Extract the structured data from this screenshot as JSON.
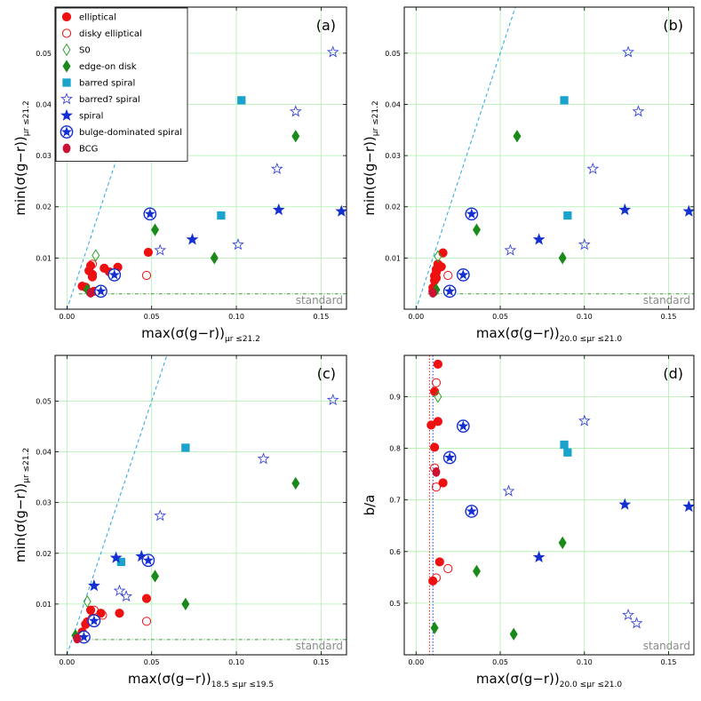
{
  "figure": {
    "name": "galaxy color-gradient scatter panels"
  },
  "styles": {
    "elliptical": {
      "label": "elliptical",
      "marker": "circle",
      "fill": "#ee1111",
      "stroke": "#ee1111"
    },
    "disky": {
      "label": "disky elliptical",
      "marker": "circle",
      "fill": "none",
      "stroke": "#ee1111"
    },
    "s0": {
      "label": "S0",
      "marker": "diamond",
      "fill": "none",
      "stroke": "#2ca02c"
    },
    "edgeon": {
      "label": "edge-on disk",
      "marker": "diamond",
      "fill": "#1a8a1a",
      "stroke": "#1a8a1a"
    },
    "barred": {
      "label": "barred spiral",
      "marker": "square",
      "fill": "#1aa3cc",
      "stroke": "#1aa3cc"
    },
    "barredq": {
      "label": "barred? spiral",
      "marker": "star",
      "fill": "none",
      "stroke": "#3a46d6"
    },
    "spiral": {
      "label": "spiral",
      "marker": "star",
      "fill": "#1530d0",
      "stroke": "#1530d0"
    },
    "bulge": {
      "label": "bulge-dominated spiral",
      "marker": "circstar",
      "fill": "#1530d0",
      "stroke": "#1530d0"
    },
    "bcg": {
      "label": "BCG",
      "marker": "bcg",
      "fill": "#cc1133",
      "stroke": "#cc1133"
    }
  },
  "legend_order": [
    "elliptical",
    "disky",
    "s0",
    "edgeon",
    "barred",
    "barredq",
    "spiral",
    "bulge",
    "bcg"
  ],
  "chart_data": [
    {
      "type": "scatter",
      "panel": "(a)",
      "xlabel": "max(σ(g−r))μr ≤21.2",
      "ylabel": "min(σ(g−r))μr ≤21.2",
      "xlim": [
        -0.007,
        0.165
      ],
      "ylim": [
        0.0,
        0.059
      ],
      "xticks": [
        0.0,
        0.05,
        0.1,
        0.15
      ],
      "xtick_labels": [
        "0.00",
        "0.05",
        "0.10",
        "0.15"
      ],
      "yticks": [
        0.01,
        0.02,
        0.03,
        0.04,
        0.05
      ],
      "ytick_labels": [
        "0.01",
        "0.02",
        "0.03",
        "0.04",
        "0.05"
      ],
      "grid": true,
      "legend": "top-left",
      "reference_lines": {
        "identity_slope": 1,
        "standard_level": 0.003,
        "standard_label": "standard"
      },
      "series": [
        {
          "style": "elliptical",
          "points": [
            [
              0.009,
              0.0045
            ],
            [
              0.011,
              0.0043
            ],
            [
              0.013,
              0.0075
            ],
            [
              0.014,
              0.0085
            ],
            [
              0.015,
              0.0068
            ],
            [
              0.015,
              0.0063
            ],
            [
              0.016,
              0.0035
            ],
            [
              0.02,
              0.0035
            ],
            [
              0.022,
              0.008
            ],
            [
              0.025,
              0.0073
            ],
            [
              0.03,
              0.0082
            ],
            [
              0.048,
              0.0111
            ]
          ]
        },
        {
          "style": "disky",
          "points": [
            [
              0.047,
              0.0066
            ],
            [
              0.015,
              0.0088
            ]
          ]
        },
        {
          "style": "s0",
          "points": [
            [
              0.017,
              0.0105
            ]
          ]
        },
        {
          "style": "edgeon",
          "points": [
            [
              0.012,
              0.0038
            ],
            [
              0.052,
              0.0155
            ],
            [
              0.087,
              0.01
            ],
            [
              0.135,
              0.0338
            ]
          ]
        },
        {
          "style": "barred",
          "points": [
            [
              0.103,
              0.0408
            ],
            [
              0.091,
              0.0183
            ]
          ]
        },
        {
          "style": "barredq",
          "points": [
            [
              0.055,
              0.0115
            ],
            [
              0.101,
              0.0126
            ],
            [
              0.124,
              0.0274
            ],
            [
              0.135,
              0.0386
            ],
            [
              0.157,
              0.0502
            ]
          ]
        },
        {
          "style": "spiral",
          "points": [
            [
              0.074,
              0.0136
            ],
            [
              0.125,
              0.0194
            ],
            [
              0.162,
              0.0191
            ]
          ]
        },
        {
          "style": "bulge",
          "points": [
            [
              0.02,
              0.0035
            ],
            [
              0.028,
              0.0067
            ],
            [
              0.049,
              0.0186
            ]
          ]
        },
        {
          "style": "bcg",
          "points": [
            [
              0.014,
              0.0032
            ]
          ]
        }
      ]
    },
    {
      "type": "scatter",
      "panel": "(b)",
      "xlabel": "max(σ(g−r))20.0 ≤μr ≤21.0",
      "ylabel": "min(σ(g−r))μr ≤21.2",
      "xlim": [
        -0.007,
        0.165
      ],
      "ylim": [
        0.0,
        0.059
      ],
      "xticks": [
        0.0,
        0.05,
        0.1,
        0.15
      ],
      "xtick_labels": [
        "0.00",
        "0.05",
        "0.10",
        "0.15"
      ],
      "yticks": [
        0.01,
        0.02,
        0.03,
        0.04,
        0.05
      ],
      "ytick_labels": [
        "0.01",
        "0.02",
        "0.03",
        "0.04",
        "0.05"
      ],
      "grid": true,
      "reference_lines": {
        "identity_slope": 1,
        "standard_level": 0.003,
        "standard_label": "standard"
      },
      "series": [
        {
          "style": "elliptical",
          "points": [
            [
              0.01,
              0.0042
            ],
            [
              0.011,
              0.0065
            ],
            [
              0.012,
              0.0078
            ],
            [
              0.013,
              0.0088
            ],
            [
              0.012,
              0.0072
            ],
            [
              0.014,
              0.0082
            ],
            [
              0.016,
              0.011
            ],
            [
              0.015,
              0.0083
            ],
            [
              0.011,
              0.0056
            ],
            [
              0.012,
              0.0061
            ],
            [
              0.01,
              0.0035
            ]
          ]
        },
        {
          "style": "disky",
          "points": [
            [
              0.019,
              0.0066
            ]
          ]
        },
        {
          "style": "s0",
          "points": [
            [
              0.013,
              0.0103
            ]
          ]
        },
        {
          "style": "edgeon",
          "points": [
            [
              0.012,
              0.0038
            ],
            [
              0.036,
              0.0155
            ],
            [
              0.087,
              0.01
            ],
            [
              0.06,
              0.0338
            ]
          ]
        },
        {
          "style": "barred",
          "points": [
            [
              0.088,
              0.0408
            ],
            [
              0.09,
              0.0183
            ]
          ]
        },
        {
          "style": "barredq",
          "points": [
            [
              0.056,
              0.0115
            ],
            [
              0.1,
              0.0126
            ],
            [
              0.105,
              0.0274
            ],
            [
              0.132,
              0.0386
            ],
            [
              0.126,
              0.0502
            ]
          ]
        },
        {
          "style": "spiral",
          "points": [
            [
              0.073,
              0.0136
            ],
            [
              0.124,
              0.0194
            ],
            [
              0.162,
              0.0191
            ]
          ]
        },
        {
          "style": "bulge",
          "points": [
            [
              0.02,
              0.0035
            ],
            [
              0.028,
              0.0067
            ],
            [
              0.033,
              0.0186
            ]
          ]
        },
        {
          "style": "bcg",
          "points": [
            [
              0.01,
              0.0032
            ]
          ]
        }
      ]
    },
    {
      "type": "scatter",
      "panel": "(c)",
      "xlabel": "max(σ(g−r))18.5 ≤μr ≤19.5",
      "ylabel": "min(σ(g−r))μr ≤21.2",
      "xlim": [
        -0.007,
        0.165
      ],
      "ylim": [
        0.0,
        0.059
      ],
      "xticks": [
        0.0,
        0.05,
        0.1,
        0.15
      ],
      "xtick_labels": [
        "0.00",
        "0.05",
        "0.10",
        "0.15"
      ],
      "yticks": [
        0.01,
        0.02,
        0.03,
        0.04,
        0.05
      ],
      "ytick_labels": [
        "0.01",
        "0.02",
        "0.03",
        "0.04",
        "0.05"
      ],
      "grid": true,
      "reference_lines": {
        "identity_slope": 1,
        "standard_level": 0.003,
        "standard_label": "standard"
      },
      "series": [
        {
          "style": "elliptical",
          "points": [
            [
              0.006,
              0.0035
            ],
            [
              0.009,
              0.0045
            ],
            [
              0.011,
              0.006
            ],
            [
              0.012,
              0.0065
            ],
            [
              0.014,
              0.0088
            ],
            [
              0.015,
              0.0072
            ],
            [
              0.016,
              0.0068
            ],
            [
              0.02,
              0.0082
            ],
            [
              0.031,
              0.0082
            ],
            [
              0.047,
              0.0111
            ]
          ]
        },
        {
          "style": "disky",
          "points": [
            [
              0.047,
              0.0066
            ],
            [
              0.016,
              0.0088
            ],
            [
              0.021,
              0.0078
            ]
          ]
        },
        {
          "style": "s0",
          "points": [
            [
              0.012,
              0.0105
            ]
          ]
        },
        {
          "style": "edgeon",
          "points": [
            [
              0.005,
              0.0038
            ],
            [
              0.052,
              0.0155
            ],
            [
              0.07,
              0.01
            ],
            [
              0.135,
              0.0338
            ]
          ]
        },
        {
          "style": "barred",
          "points": [
            [
              0.07,
              0.0408
            ],
            [
              0.032,
              0.0183
            ]
          ]
        },
        {
          "style": "barredq",
          "points": [
            [
              0.031,
              0.0126
            ],
            [
              0.035,
              0.0115
            ],
            [
              0.055,
              0.0274
            ],
            [
              0.116,
              0.0386
            ],
            [
              0.157,
              0.0502
            ]
          ]
        },
        {
          "style": "spiral",
          "points": [
            [
              0.016,
              0.0136
            ],
            [
              0.029,
              0.0191
            ],
            [
              0.044,
              0.0194
            ]
          ]
        },
        {
          "style": "bulge",
          "points": [
            [
              0.01,
              0.0035
            ],
            [
              0.016,
              0.0067
            ],
            [
              0.048,
              0.0186
            ]
          ]
        },
        {
          "style": "bcg",
          "points": [
            [
              0.006,
              0.0032
            ]
          ]
        }
      ]
    },
    {
      "type": "scatter",
      "panel": "(d)",
      "xlabel": "max(σ(g−r))20.0 ≤μr ≤21.0",
      "ylabel": "b/a",
      "xlim": [
        -0.007,
        0.165
      ],
      "ylim": [
        0.4,
        0.98
      ],
      "xticks": [
        0.0,
        0.05,
        0.1,
        0.15
      ],
      "xtick_labels": [
        "0.00",
        "0.05",
        "0.10",
        "0.15"
      ],
      "yticks": [
        0.5,
        0.6,
        0.7,
        0.8,
        0.9
      ],
      "ytick_labels": [
        "0.5",
        "0.6",
        "0.7",
        "0.8",
        "0.9"
      ],
      "grid": true,
      "reference_lines": {
        "vertical_red": 0.008,
        "vertical_blue": 0.01,
        "standard_label": "standard"
      },
      "series": [
        {
          "style": "elliptical",
          "points": [
            [
              0.013,
              0.963
            ],
            [
              0.011,
              0.91
            ],
            [
              0.009,
              0.845
            ],
            [
              0.013,
              0.852
            ],
            [
              0.011,
              0.802
            ],
            [
              0.016,
              0.733
            ],
            [
              0.014,
              0.58
            ],
            [
              0.01,
              0.543
            ]
          ]
        },
        {
          "style": "disky",
          "points": [
            [
              0.012,
              0.927
            ],
            [
              0.011,
              0.762
            ],
            [
              0.012,
              0.725
            ],
            [
              0.019,
              0.567
            ],
            [
              0.012,
              0.549
            ]
          ]
        },
        {
          "style": "s0",
          "points": [
            [
              0.013,
              0.9
            ]
          ]
        },
        {
          "style": "edgeon",
          "points": [
            [
              0.011,
              0.452
            ],
            [
              0.036,
              0.562
            ],
            [
              0.058,
              0.44
            ],
            [
              0.087,
              0.617
            ]
          ]
        },
        {
          "style": "barred",
          "points": [
            [
              0.088,
              0.807
            ],
            [
              0.09,
              0.792
            ]
          ]
        },
        {
          "style": "barredq",
          "points": [
            [
              0.055,
              0.717
            ],
            [
              0.1,
              0.853
            ],
            [
              0.126,
              0.477
            ],
            [
              0.131,
              0.461
            ]
          ]
        },
        {
          "style": "spiral",
          "points": [
            [
              0.073,
              0.589
            ],
            [
              0.124,
              0.691
            ],
            [
              0.162,
              0.687
            ]
          ]
        },
        {
          "style": "bulge",
          "points": [
            [
              0.028,
              0.843
            ],
            [
              0.02,
              0.782
            ],
            [
              0.033,
              0.678
            ]
          ]
        },
        {
          "style": "bcg",
          "points": [
            [
              0.012,
              0.754
            ]
          ]
        }
      ]
    }
  ]
}
